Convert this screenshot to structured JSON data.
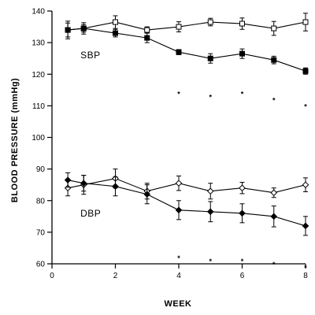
{
  "chart_data": {
    "type": "line",
    "xlabel": "WEEK",
    "ylabel": "BLOOD PRESSURE (mmHg)",
    "xlim": [
      0,
      8
    ],
    "ylim": [
      60,
      140
    ],
    "x_ticks": [
      0,
      2,
      4,
      6,
      8
    ],
    "y_ticks": [
      60,
      70,
      80,
      90,
      100,
      110,
      120,
      130,
      140
    ],
    "grid": false,
    "annotations": [
      {
        "text": "SBP",
        "x": 0.6,
        "y": 126
      },
      {
        "text": "DBP",
        "x": 0.6,
        "y": 76
      }
    ],
    "significance_marker": "*",
    "significance_x": [
      4,
      5,
      6,
      7,
      8
    ],
    "significance_y": [
      114,
      113,
      114,
      112,
      110,
      62,
      61,
      61,
      60,
      59
    ],
    "series": [
      {
        "marker": "open-square",
        "x": [
          0.5,
          1,
          2,
          3,
          4,
          5,
          6,
          7,
          8
        ],
        "values": [
          134,
          134.5,
          136.5,
          134,
          135,
          136.5,
          136,
          134.5,
          136.5
        ],
        "errors": [
          2.8,
          1.8,
          2,
          1,
          1.6,
          1.2,
          1.8,
          2.2,
          2.8
        ]
      },
      {
        "marker": "filled-square",
        "x": [
          0.5,
          1,
          2,
          3,
          4,
          5,
          6,
          7,
          8
        ],
        "values": [
          134,
          134.5,
          133,
          131.5,
          127,
          125,
          126.5,
          124.5,
          121
        ],
        "errors": [
          2.2,
          1.2,
          1.2,
          1.5,
          0.8,
          1.5,
          1.5,
          1.2,
          1
        ]
      },
      {
        "marker": "open-diamond",
        "x": [
          0.5,
          1,
          2,
          3,
          4,
          5,
          6,
          7,
          8
        ],
        "values": [
          84,
          85,
          87,
          83,
          85.5,
          83,
          84,
          82.5,
          85
        ],
        "errors": [
          2.5,
          3,
          3,
          2.5,
          2.3,
          2.5,
          1.8,
          1.5,
          2.2
        ]
      },
      {
        "marker": "filled-diamond",
        "x": [
          0.5,
          1,
          2,
          3,
          4,
          5,
          6,
          7,
          8
        ],
        "values": [
          86.5,
          85.5,
          84.5,
          82,
          77,
          76.5,
          76,
          75,
          72
        ],
        "errors": [
          2.3,
          2.5,
          3,
          3,
          3,
          3.2,
          3,
          3.3,
          3
        ]
      }
    ]
  }
}
